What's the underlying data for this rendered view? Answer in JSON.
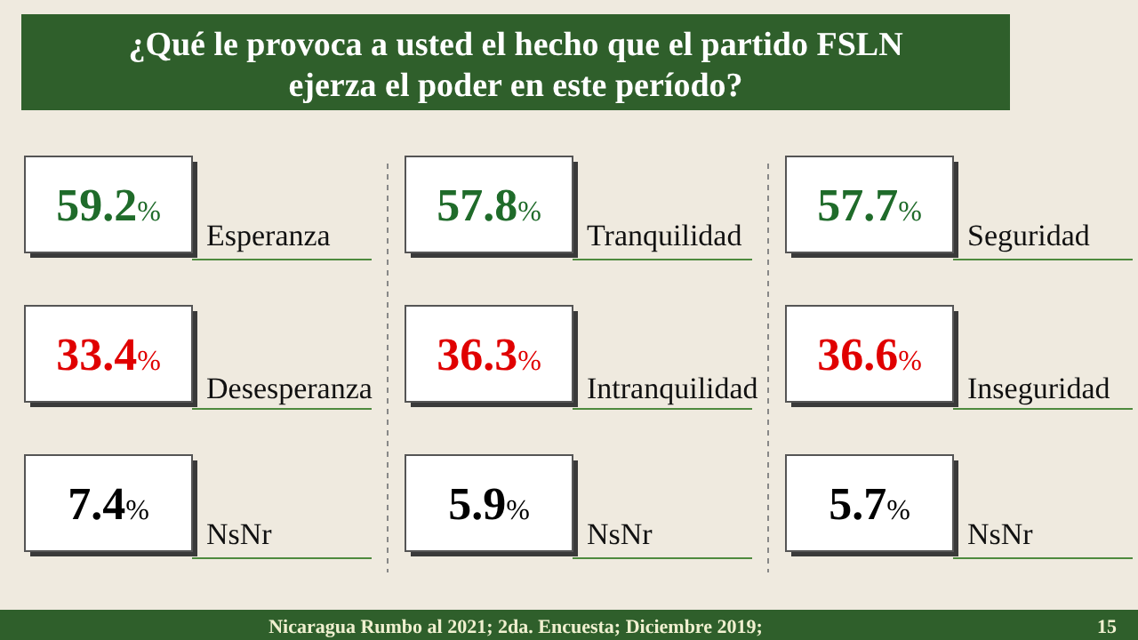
{
  "chart_data": [
    {
      "type": "other",
      "title": "¿Qué le provoca a usted el hecho que el partido FSLN ejerza el poder en este período?",
      "categories": [
        "Esperanza",
        "Desesperanza",
        "NsNr"
      ],
      "values": [
        59.2,
        33.4,
        7.4
      ],
      "value_labels": [
        "59.2%",
        "33.4%",
        "7.4%"
      ],
      "annotations": [
        "Nicaragua Rumbo al 2021;  2da. Encuesta; Diciembre 2019;",
        "15"
      ]
    },
    {
      "type": "other",
      "categories": [
        "Tranquilidad",
        "Intranquilidad",
        "NsNr"
      ],
      "values": [
        57.8,
        36.3,
        5.9
      ],
      "value_labels": [
        "57.8%",
        "36.3%",
        "5.9%"
      ]
    },
    {
      "type": "other",
      "categories": [
        "Seguridad",
        "Inseguridad",
        "NsNr"
      ],
      "values": [
        57.7,
        36.6,
        5.7
      ],
      "value_labels": [
        "57.7%",
        "36.6%",
        "5.7%"
      ]
    }
  ]
}
